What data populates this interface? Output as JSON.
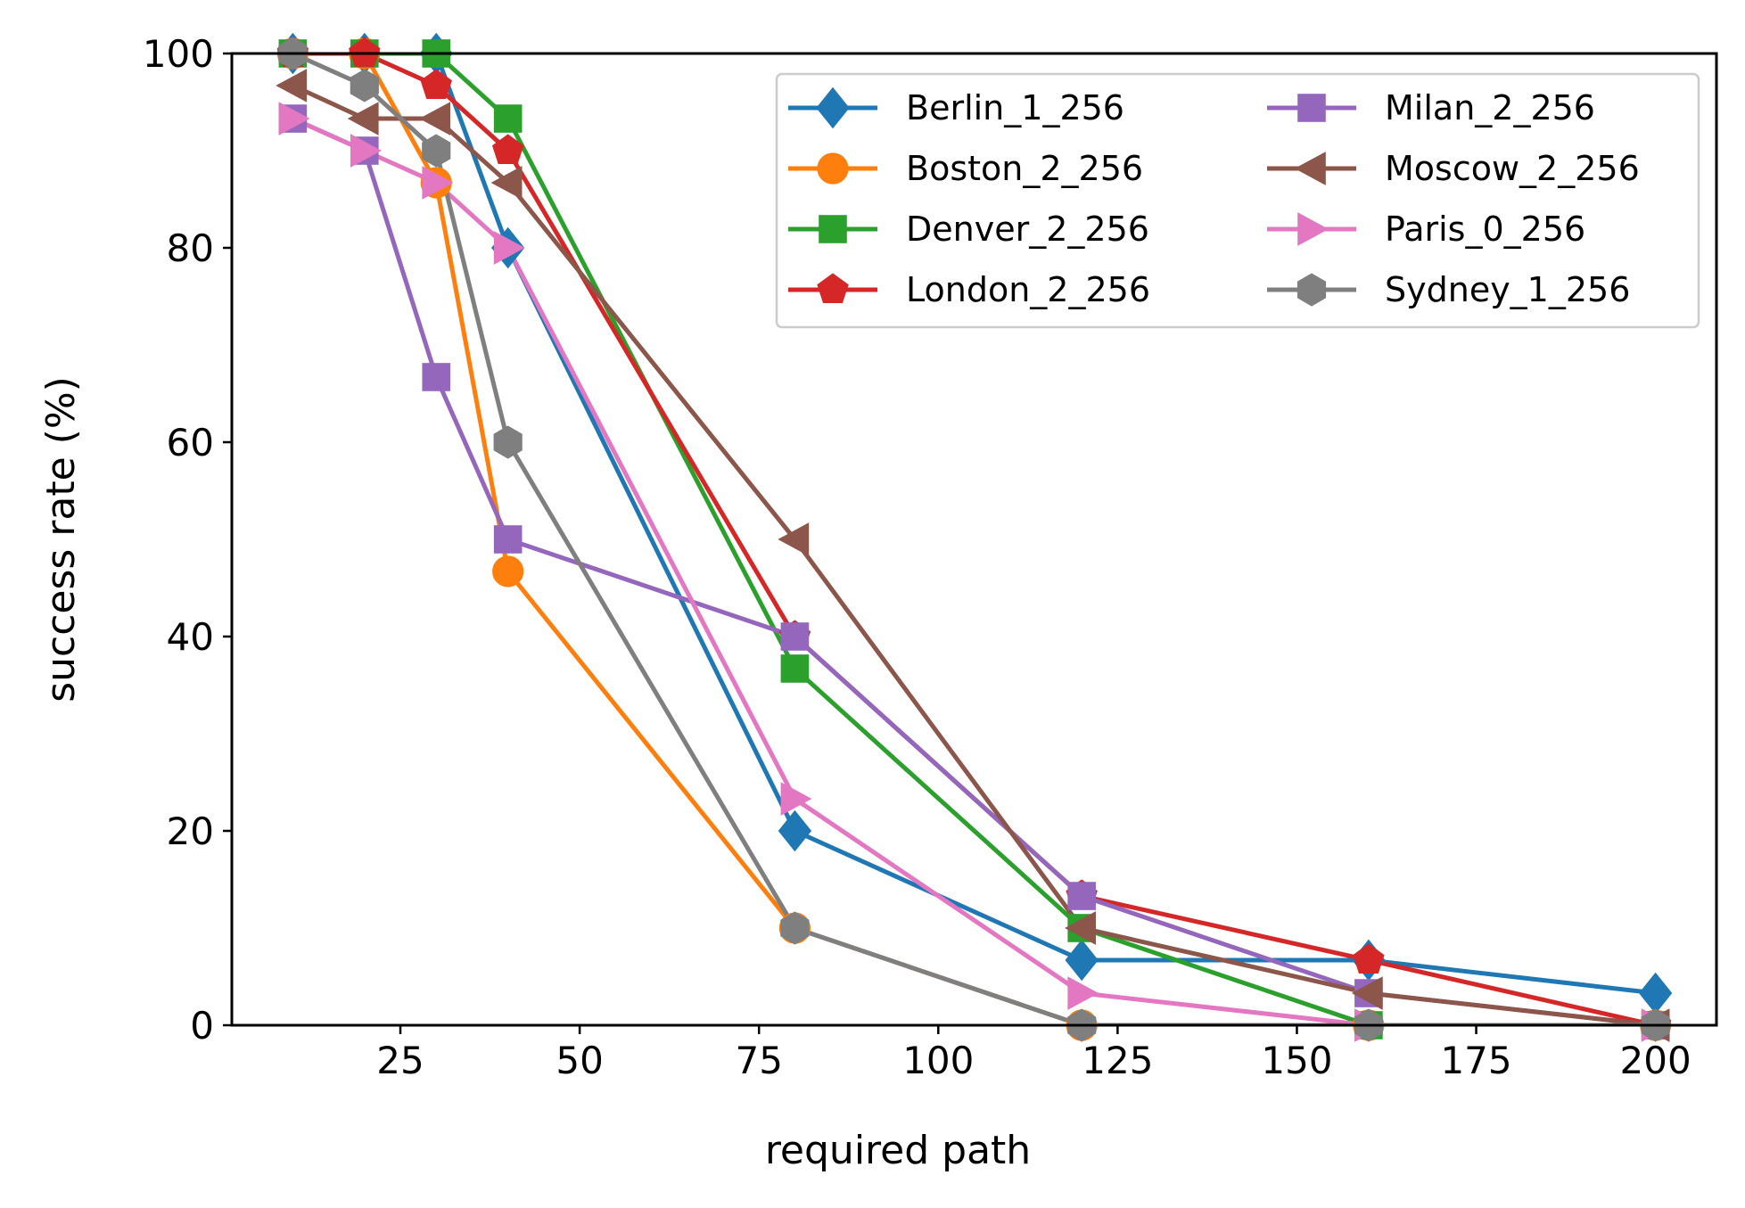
{
  "chart_data": {
    "type": "line",
    "title": "",
    "xlabel": "required path",
    "ylabel": "success rate (%)",
    "xlim": [
      1.5,
      208.5
    ],
    "ylim": [
      0,
      100
    ],
    "xticks": [
      25,
      50,
      75,
      100,
      125,
      150,
      175,
      200
    ],
    "yticks": [
      0,
      20,
      40,
      60,
      80,
      100
    ],
    "grid": false,
    "legend": {
      "placement": "top-right",
      "columns": 2
    },
    "x": [
      10,
      20,
      30,
      40,
      80,
      120,
      160,
      200
    ],
    "series": [
      {
        "name": "Berlin_1_256",
        "color": "#1f77b4",
        "marker": "diamond",
        "values": [
          100,
          100,
          100,
          80,
          20,
          6.7,
          6.7,
          3.3
        ]
      },
      {
        "name": "Boston_2_256",
        "color": "#ff7f0e",
        "marker": "circle",
        "values": [
          100,
          100,
          86.7,
          46.7,
          10,
          0,
          0,
          0
        ]
      },
      {
        "name": "Denver_2_256",
        "color": "#2ca02c",
        "marker": "square",
        "values": [
          100,
          100,
          100,
          93.3,
          36.7,
          10,
          0,
          0
        ]
      },
      {
        "name": "London_2_256",
        "color": "#d62728",
        "marker": "pentagon",
        "values": [
          100,
          100,
          96.7,
          90,
          40,
          13.3,
          6.7,
          0
        ]
      },
      {
        "name": "Milan_2_256",
        "color": "#9467bd",
        "marker": "square",
        "values": [
          93.3,
          90,
          66.7,
          50,
          40,
          13.3,
          3.3,
          0
        ]
      },
      {
        "name": "Moscow_2_256",
        "color": "#8c564b",
        "marker": "triangle-left",
        "values": [
          96.7,
          93.3,
          93.3,
          86.7,
          50,
          10,
          3.3,
          0
        ]
      },
      {
        "name": "Paris_0_256",
        "color": "#e377c2",
        "marker": "triangle-right",
        "values": [
          93.3,
          90,
          86.7,
          80,
          23.3,
          3.3,
          0,
          0
        ]
      },
      {
        "name": "Sydney_1_256",
        "color": "#7f7f7f",
        "marker": "hexagon",
        "values": [
          100,
          96.7,
          90,
          60,
          10,
          0,
          0,
          0
        ]
      }
    ]
  }
}
